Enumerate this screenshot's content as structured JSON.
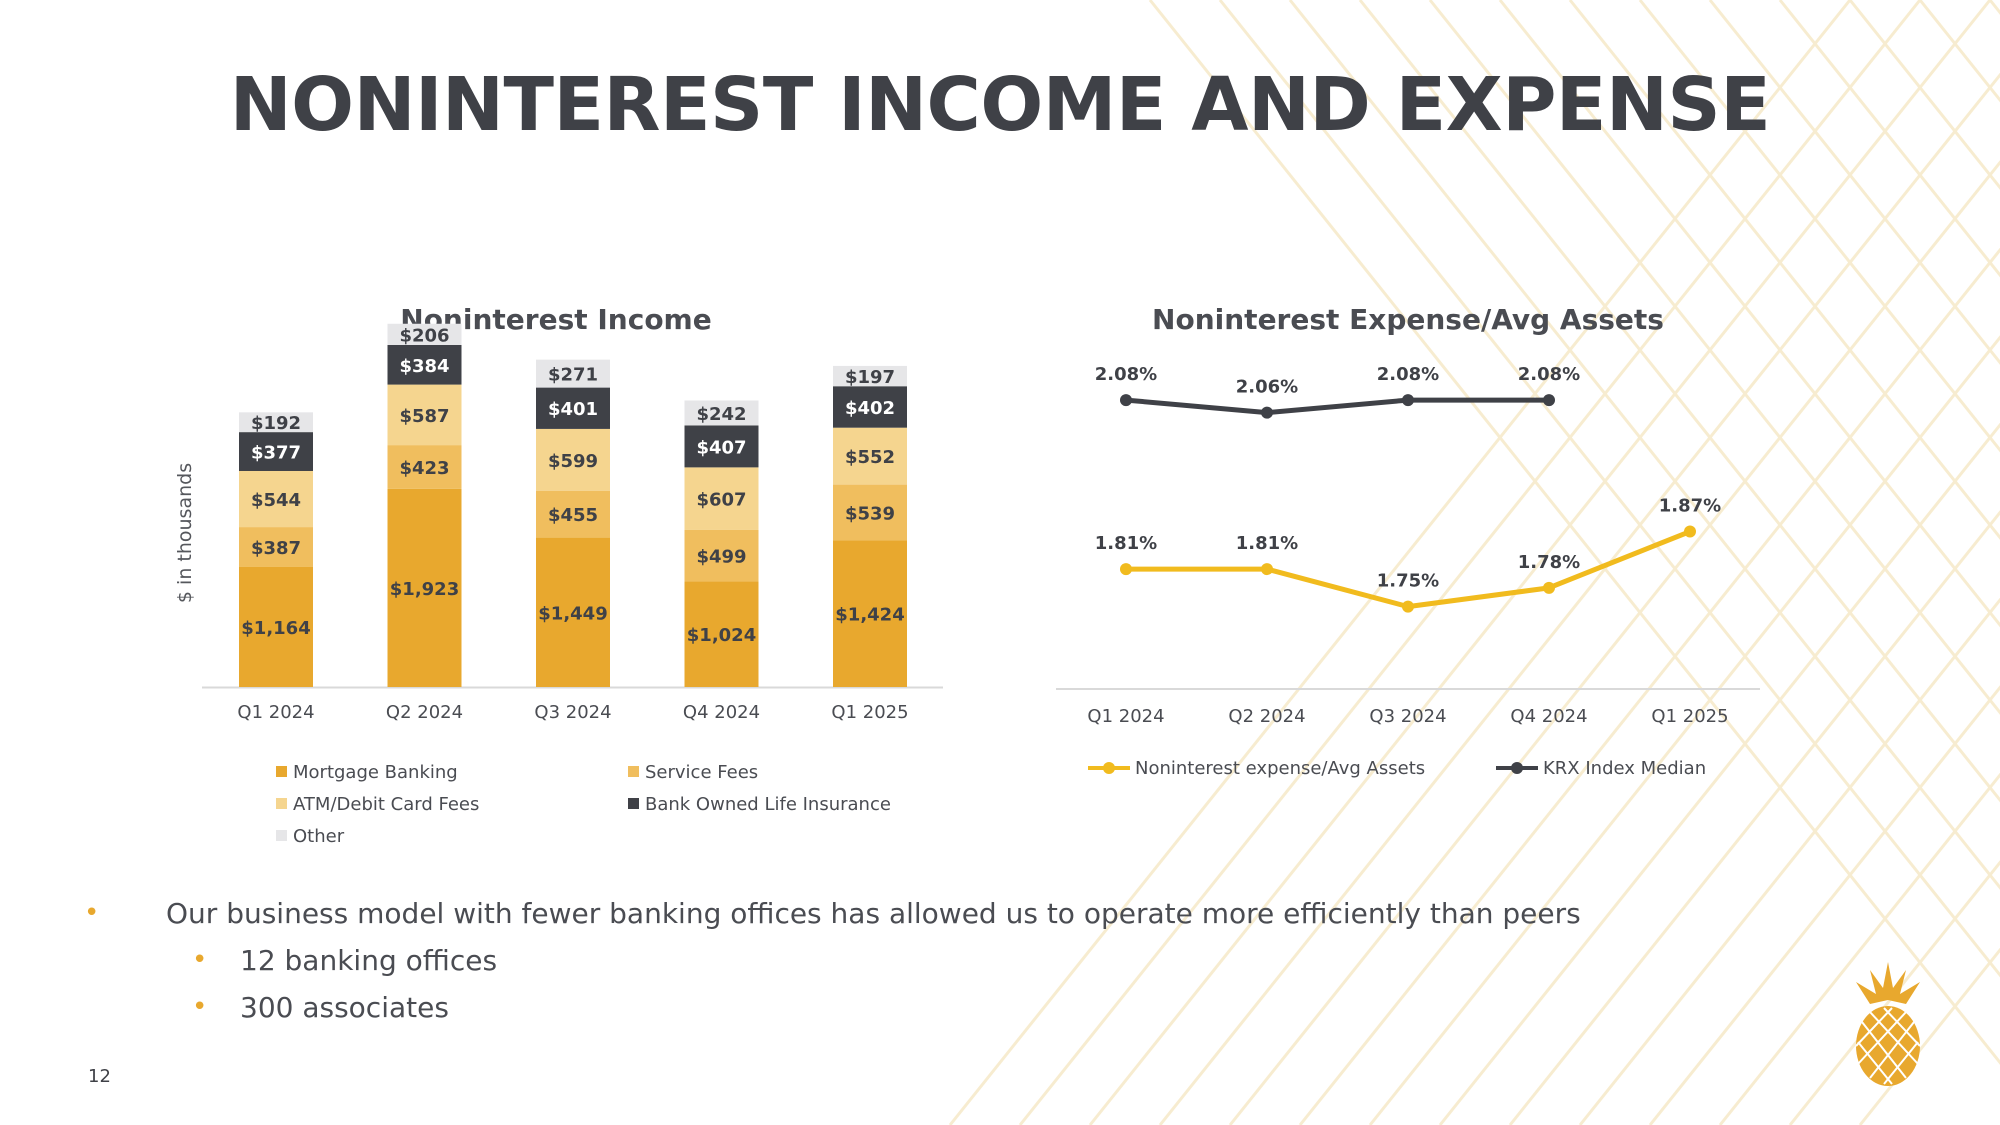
{
  "page": {
    "title": "NONINTEREST INCOME AND EXPENSE",
    "page_number": "12",
    "bullets": [
      {
        "level": 1,
        "text": "Our business model with fewer banking offices has allowed us to operate more efficiently than peers"
      },
      {
        "level": 2,
        "text": "12 banking offices"
      },
      {
        "level": 2,
        "text": "300 associates"
      }
    ],
    "logo_icon": "pineapple-icon"
  },
  "colors": {
    "mortgage": "#E8A82E",
    "service": "#F0BE5E",
    "atm": "#F5D58F",
    "boli": "#3F4147",
    "other": "#E6E6E8",
    "line_yellow": "#F1BB1E",
    "line_dark": "#3F4147"
  },
  "chart_data": [
    {
      "type": "bar",
      "stacked": true,
      "title": "Noninterest Income",
      "ylabel": "$ in thousands",
      "categories": [
        "Q1 2024",
        "Q2 2024",
        "Q3 2024",
        "Q4 2024",
        "Q1 2025"
      ],
      "series": [
        {
          "name": "Mortgage Banking",
          "color": "#E8A82E",
          "values": [
            1164,
            1923,
            1449,
            1024,
            1424
          ],
          "labels": [
            "$1,164",
            "$1,923",
            "$1,449",
            "$1,024",
            "$1,424"
          ]
        },
        {
          "name": "Service Fees",
          "color": "#F0BE5E",
          "values": [
            387,
            423,
            455,
            499,
            539
          ],
          "labels": [
            "$387",
            "$423",
            "$455",
            "$499",
            "$539"
          ]
        },
        {
          "name": "ATM/Debit Card Fees",
          "color": "#F5D58F",
          "values": [
            544,
            587,
            599,
            607,
            552
          ],
          "labels": [
            "$544",
            "$587",
            "$599",
            "$607",
            "$552"
          ]
        },
        {
          "name": "Bank Owned Life Insurance",
          "color": "#3F4147",
          "values": [
            377,
            384,
            401,
            407,
            402
          ],
          "labels": [
            "$377",
            "$384",
            "$401",
            "$407",
            "$402"
          ]
        },
        {
          "name": "Other",
          "color": "#E6E6E8",
          "values": [
            192,
            206,
            271,
            242,
            197
          ],
          "labels": [
            "$192",
            "$206",
            "$271",
            "$242",
            "$197"
          ]
        }
      ],
      "ylim": [
        0,
        3540
      ],
      "grid": false,
      "legend_position": "bottom"
    },
    {
      "type": "line",
      "title": "Noninterest Expense/Avg Assets",
      "categories": [
        "Q1 2024",
        "Q2 2024",
        "Q3 2024",
        "Q4 2024",
        "Q1 2025"
      ],
      "series": [
        {
          "name": "Noninterest expense/Avg Assets",
          "color": "#F1BB1E",
          "values": [
            1.81,
            1.81,
            1.75,
            1.78,
            1.87
          ],
          "labels": [
            "1.81%",
            "1.81%",
            "1.75%",
            "1.78%",
            "1.87%"
          ]
        },
        {
          "name": "KRX Index Median",
          "color": "#3F4147",
          "values": [
            2.08,
            2.06,
            2.08,
            2.08,
            null
          ],
          "labels": [
            "2.08%",
            "2.06%",
            "2.08%",
            "2.08%",
            ""
          ]
        }
      ],
      "ylim": [
        1.62,
        2.16
      ],
      "grid": false,
      "legend_position": "bottom"
    }
  ]
}
